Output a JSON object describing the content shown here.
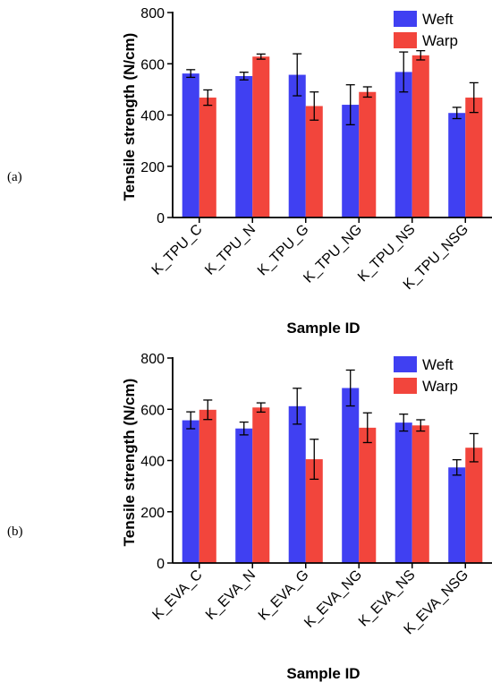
{
  "colors": {
    "weft": "#4040f2",
    "warp": "#f2453c",
    "axis": "#000000"
  },
  "chart_data": [
    {
      "panel": "(a)",
      "type": "bar",
      "title": "",
      "xlabel": "Sample ID",
      "ylabel": "Tensile strength (N/cm)",
      "ylim": [
        0,
        800
      ],
      "yticks": [
        0,
        200,
        400,
        600,
        800
      ],
      "legend_position": "top-right",
      "categories": [
        "K_TPU_C",
        "K_TPU_N",
        "K_TPU_G",
        "K_TPU_NG",
        "K_TPU_NS",
        "K_TPU_NSG"
      ],
      "series": [
        {
          "name": "Weft",
          "values": [
            562,
            552,
            557,
            440,
            568,
            408
          ],
          "errors": [
            15,
            15,
            82,
            78,
            78,
            22
          ]
        },
        {
          "name": "Warp",
          "values": [
            468,
            628,
            435,
            490,
            633,
            468
          ],
          "errors": [
            30,
            10,
            55,
            20,
            18,
            58
          ]
        }
      ]
    },
    {
      "panel": "(b)",
      "type": "bar",
      "title": "",
      "xlabel": "Sample ID",
      "ylabel": "Tensile strength (N/cm)",
      "ylim": [
        0,
        800
      ],
      "yticks": [
        0,
        200,
        400,
        600,
        800
      ],
      "legend_position": "top-right",
      "categories": [
        "K_EVA_C",
        "K_EVA_N",
        "K_EVA_G",
        "K_EVA_NG",
        "K_EVA_NS",
        "K_EVA_NSG"
      ],
      "series": [
        {
          "name": "Weft",
          "values": [
            557,
            525,
            612,
            683,
            548,
            373
          ],
          "errors": [
            33,
            25,
            70,
            70,
            33,
            30
          ]
        },
        {
          "name": "Warp",
          "values": [
            598,
            607,
            405,
            528,
            537,
            450
          ],
          "errors": [
            38,
            18,
            78,
            58,
            22,
            55
          ]
        }
      ]
    }
  ]
}
